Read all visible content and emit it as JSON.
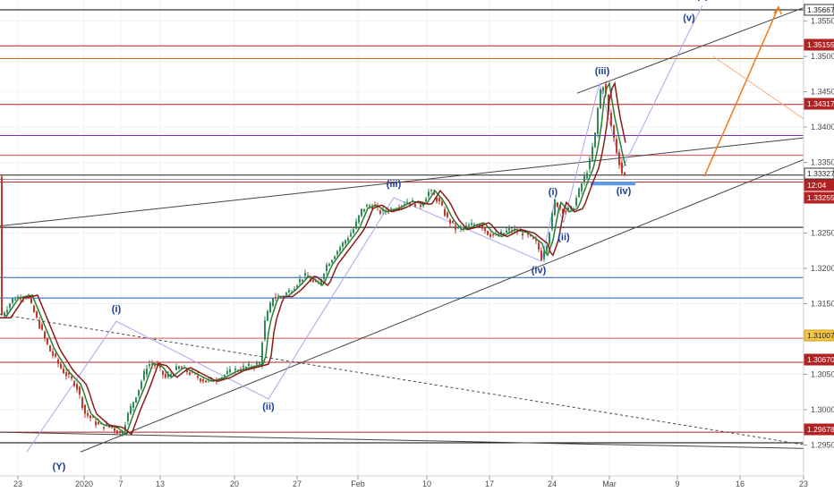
{
  "chart_data": {
    "type": "line",
    "title": "",
    "xlabel": "",
    "ylabel": "",
    "ylim": [
      1.292,
      1.3575
    ],
    "grid": true,
    "x_ticks": [
      "23",
      "2020",
      "7",
      "13",
      "20",
      "27",
      "Feb",
      "10",
      "17",
      "24",
      "Mar",
      "9",
      "16",
      "23"
    ],
    "y_ticks": [
      "1.35500",
      "1.35000",
      "1.34500",
      "1.34000",
      "1.33500",
      "1.32500",
      "1.32000",
      "1.31500",
      "1.30500",
      "1.30000",
      "1.29500"
    ],
    "price_badges": [
      {
        "label": "1.35667",
        "style": "dark"
      },
      {
        "label": "1.35155",
        "style": "red"
      },
      {
        "label": "1.34317",
        "style": "red"
      },
      {
        "label": "1.33327",
        "style": "dark"
      },
      {
        "label": "12:04",
        "style": "red"
      },
      {
        "label": "1.33255",
        "style": "red"
      },
      {
        "label": "1.31007",
        "style": "gold"
      },
      {
        "label": "1.30670",
        "style": "red"
      },
      {
        "label": "1.29678",
        "style": "red"
      }
    ],
    "horizontal_levels": [
      {
        "price": 1.3566,
        "color": "#000000"
      },
      {
        "price": 1.3515,
        "color": "#b22222"
      },
      {
        "price": 1.3497,
        "color": "#d2691e"
      },
      {
        "price": 1.3432,
        "color": "#b22222"
      },
      {
        "price": 1.3388,
        "color": "#7b2cbf"
      },
      {
        "price": 1.336,
        "color": "#e05050"
      },
      {
        "price": 1.3332,
        "color": "#222222"
      },
      {
        "price": 1.3326,
        "color": "#999999"
      },
      {
        "price": 1.3322,
        "color": "#b22222"
      },
      {
        "price": 1.3258,
        "color": "#000000"
      },
      {
        "price": 1.3187,
        "color": "#1e5fbf"
      },
      {
        "price": 1.3158,
        "color": "#1e5fbf"
      },
      {
        "price": 1.3101,
        "color": "#e05050"
      },
      {
        "price": 1.3067,
        "color": "#b22222"
      },
      {
        "price": 1.2968,
        "color": "#b22222"
      },
      {
        "price": 1.2953,
        "color": "#000000"
      }
    ],
    "price_path": [
      [
        0,
        1.313
      ],
      [
        15,
        1.3158
      ],
      [
        30,
        1.3162
      ],
      [
        42,
        1.3125
      ],
      [
        55,
        1.3085
      ],
      [
        70,
        1.3055
      ],
      [
        85,
        1.3035
      ],
      [
        95,
        1.2995
      ],
      [
        110,
        1.2978
      ],
      [
        125,
        1.2975
      ],
      [
        135,
        1.2965
      ],
      [
        145,
        1.3
      ],
      [
        155,
        1.303
      ],
      [
        165,
        1.3065
      ],
      [
        175,
        1.3062
      ],
      [
        185,
        1.3045
      ],
      [
        200,
        1.306
      ],
      [
        215,
        1.305
      ],
      [
        230,
        1.304
      ],
      [
        245,
        1.3045
      ],
      [
        260,
        1.3055
      ],
      [
        275,
        1.306
      ],
      [
        290,
        1.3065
      ],
      [
        295,
        1.312
      ],
      [
        305,
        1.316
      ],
      [
        315,
        1.316
      ],
      [
        325,
        1.317
      ],
      [
        340,
        1.319
      ],
      [
        355,
        1.3175
      ],
      [
        365,
        1.3205
      ],
      [
        380,
        1.323
      ],
      [
        395,
        1.3255
      ],
      [
        405,
        1.3285
      ],
      [
        415,
        1.329
      ],
      [
        425,
        1.328
      ],
      [
        440,
        1.3285
      ],
      [
        455,
        1.3295
      ],
      [
        470,
        1.329
      ],
      [
        480,
        1.331
      ],
      [
        490,
        1.3295
      ],
      [
        500,
        1.327
      ],
      [
        510,
        1.3255
      ],
      [
        520,
        1.3258
      ],
      [
        535,
        1.3265
      ],
      [
        545,
        1.325
      ],
      [
        555,
        1.3245
      ],
      [
        570,
        1.3255
      ],
      [
        585,
        1.325
      ],
      [
        600,
        1.3235
      ],
      [
        605,
        1.3215
      ],
      [
        612,
        1.324
      ],
      [
        620,
        1.3295
      ],
      [
        630,
        1.328
      ],
      [
        640,
        1.3285
      ],
      [
        650,
        1.332
      ],
      [
        658,
        1.3345
      ],
      [
        665,
        1.339
      ],
      [
        670,
        1.345
      ],
      [
        675,
        1.3462
      ],
      [
        680,
        1.342
      ],
      [
        685,
        1.339
      ],
      [
        690,
        1.336
      ],
      [
        695,
        1.3335
      ],
      [
        700,
        1.333
      ]
    ],
    "trendlines": [
      {
        "from": [
          0,
          1.326
        ],
        "to": [
          900,
          1.3385
        ],
        "color": "#444444",
        "dash": false
      },
      {
        "from": [
          90,
          1.294
        ],
        "to": [
          900,
          1.3355
        ],
        "color": "#444444",
        "dash": false
      },
      {
        "from": [
          0,
          1.3135
        ],
        "to": [
          900,
          1.295
        ],
        "color": "#444444",
        "dash": true
      },
      {
        "from": [
          0,
          1.2968
        ],
        "to": [
          900,
          1.2945
        ],
        "color": "#444444",
        "dash": false
      },
      {
        "from": [
          645,
          1.3448
        ],
        "to": [
          900,
          1.357
        ],
        "color": "#444444",
        "dash": false
      }
    ],
    "wave_path": [
      [
        30,
        1.294
      ],
      [
        130,
        1.3125
      ],
      [
        300,
        1.3015
      ],
      [
        440,
        1.33
      ],
      [
        605,
        1.321
      ],
      [
        620,
        1.3295
      ],
      [
        630,
        1.3265
      ],
      [
        670,
        1.3462
      ],
      [
        695,
        1.334
      ],
      [
        770,
        1.3535
      ],
      [
        785,
        1.3572
      ]
    ],
    "projection": {
      "from": [
        787,
        1.333
      ],
      "to": [
        870,
        1.357
      ]
    },
    "projection_faint": {
      "from": [
        797,
        1.35
      ],
      "to": [
        900,
        1.341
      ]
    },
    "support_box": {
      "x1": 660,
      "x2": 710,
      "price": 1.332
    },
    "wave_labels": [
      {
        "text": "(Y)",
        "x": 66,
        "price": 1.2915
      },
      {
        "text": "(i)",
        "x": 130,
        "price": 1.3138
      },
      {
        "text": "(ii)",
        "x": 300,
        "price": 1.3
      },
      {
        "text": "(iii)",
        "x": 440,
        "price": 1.3315
      },
      {
        "text": "(i)",
        "x": 618,
        "price": 1.3304
      },
      {
        "text": "(ii)",
        "x": 630,
        "price": 1.324
      },
      {
        "text": "(iii)",
        "x": 673,
        "price": 1.3475
      },
      {
        "text": "(iv)",
        "x": 602,
        "price": 1.3193
      },
      {
        "text": "(iv)",
        "x": 697,
        "price": 1.3305
      },
      {
        "text": "(v)",
        "x": 770,
        "price": 1.355
      },
      {
        "text": "(v)",
        "x": 785,
        "price": 1.3582
      }
    ]
  }
}
